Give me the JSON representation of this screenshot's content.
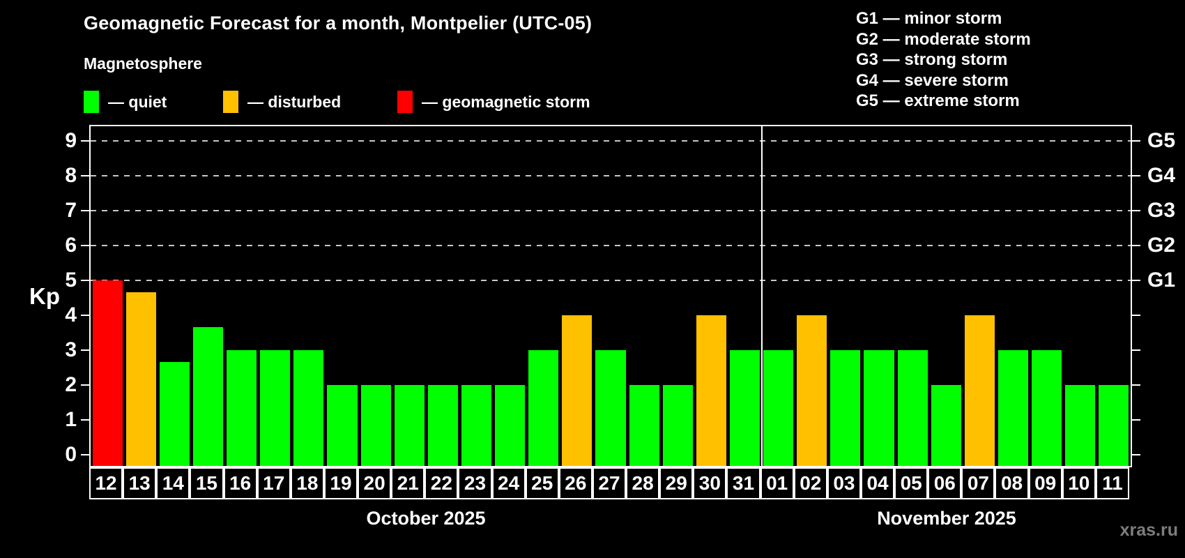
{
  "title": "Geomagnetic Forecast for a month, Montpelier (UTC-05)",
  "subtitle": "Magnetosphere",
  "watermark": "xras.ru",
  "colors": {
    "quiet": "#00ff00",
    "disturbed": "#ffc000",
    "storm": "#ff0000",
    "axis": "#ffffff",
    "grid_dash": "#c8c8c8",
    "background": "#000000",
    "watermark": "#7d7d7d"
  },
  "legend": {
    "items": [
      {
        "name": "quiet",
        "label": "— quiet",
        "color": "#00ff00"
      },
      {
        "name": "disturbed",
        "label": "— disturbed",
        "color": "#ffc000"
      },
      {
        "name": "storm",
        "label": "— geomagnetic storm",
        "color": "#ff0000"
      }
    ]
  },
  "storm_scale_legend": [
    "G1 — minor storm",
    "G2 — moderate storm",
    "G3 — strong storm",
    "G4 — severe storm",
    "G5 — extreme storm"
  ],
  "chart_data": {
    "type": "bar",
    "title": "Geomagnetic Forecast for a month, Montpelier (UTC-05)",
    "ylabel": "Kp",
    "yticks": [
      0,
      1,
      2,
      3,
      4,
      5,
      6,
      7,
      8,
      9
    ],
    "ylim": [
      -0.32,
      9.42
    ],
    "grid": "dashed horizontal lines at storm levels, legend top-left, G-scale labels on right axis",
    "dashed_levels": [
      5,
      6,
      7,
      8,
      9
    ],
    "right_axis_labels": [
      {
        "kp": 5,
        "label": "G1"
      },
      {
        "kp": 6,
        "label": "G2"
      },
      {
        "kp": 7,
        "label": "G3"
      },
      {
        "kp": 8,
        "label": "G4"
      },
      {
        "kp": 9,
        "label": "G5"
      }
    ],
    "months": [
      {
        "label": "October 2025",
        "days": 20
      },
      {
        "label": "November 2025",
        "days": 11
      }
    ],
    "bars": [
      {
        "day": "12",
        "kp": 5.0,
        "status": "storm"
      },
      {
        "day": "13",
        "kp": 4.67,
        "status": "disturbed"
      },
      {
        "day": "14",
        "kp": 2.67,
        "status": "quiet"
      },
      {
        "day": "15",
        "kp": 3.67,
        "status": "quiet"
      },
      {
        "day": "16",
        "kp": 3.0,
        "status": "quiet"
      },
      {
        "day": "17",
        "kp": 3.0,
        "status": "quiet"
      },
      {
        "day": "18",
        "kp": 3.0,
        "status": "quiet"
      },
      {
        "day": "19",
        "kp": 2.0,
        "status": "quiet"
      },
      {
        "day": "20",
        "kp": 2.0,
        "status": "quiet"
      },
      {
        "day": "21",
        "kp": 2.0,
        "status": "quiet"
      },
      {
        "day": "22",
        "kp": 2.0,
        "status": "quiet"
      },
      {
        "day": "23",
        "kp": 2.0,
        "status": "quiet"
      },
      {
        "day": "24",
        "kp": 2.0,
        "status": "quiet"
      },
      {
        "day": "25",
        "kp": 3.0,
        "status": "quiet"
      },
      {
        "day": "26",
        "kp": 4.0,
        "status": "disturbed"
      },
      {
        "day": "27",
        "kp": 3.0,
        "status": "quiet"
      },
      {
        "day": "28",
        "kp": 2.0,
        "status": "quiet"
      },
      {
        "day": "29",
        "kp": 2.0,
        "status": "quiet"
      },
      {
        "day": "30",
        "kp": 4.0,
        "status": "disturbed"
      },
      {
        "day": "31",
        "kp": 3.0,
        "status": "quiet"
      },
      {
        "day": "01",
        "kp": 3.0,
        "status": "quiet"
      },
      {
        "day": "02",
        "kp": 4.0,
        "status": "disturbed"
      },
      {
        "day": "03",
        "kp": 3.0,
        "status": "quiet"
      },
      {
        "day": "04",
        "kp": 3.0,
        "status": "quiet"
      },
      {
        "day": "05",
        "kp": 3.0,
        "status": "quiet"
      },
      {
        "day": "06",
        "kp": 2.0,
        "status": "quiet"
      },
      {
        "day": "07",
        "kp": 4.0,
        "status": "disturbed"
      },
      {
        "day": "08",
        "kp": 3.0,
        "status": "quiet"
      },
      {
        "day": "09",
        "kp": 3.0,
        "status": "quiet"
      },
      {
        "day": "10",
        "kp": 2.0,
        "status": "quiet"
      },
      {
        "day": "11",
        "kp": 2.0,
        "status": "quiet"
      }
    ]
  }
}
